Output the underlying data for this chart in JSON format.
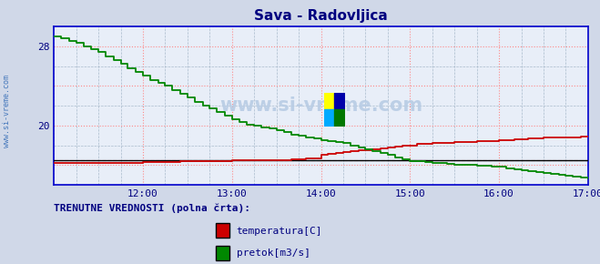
{
  "title": "Sava - Radovljica",
  "title_color": "#000080",
  "bg_color": "#d0d8e8",
  "plot_bg_color": "#e8eef8",
  "grid_color_major": "#ff8888",
  "grid_color_minor": "#aabbcc",
  "border_color": "#0000cc",
  "axis_label_color": "#000080",
  "watermark": "www.si-vreme.com",
  "xlim_hours": [
    11.0,
    17.0
  ],
  "xticks": [
    12.0,
    13.0,
    14.0,
    15.0,
    16.0,
    17.0
  ],
  "xtick_labels": [
    "12:00",
    "13:00",
    "14:00",
    "15:00",
    "16:00",
    "17:00"
  ],
  "ylim": [
    14.0,
    30.0
  ],
  "ytick_positions": [
    16,
    20,
    24,
    28
  ],
  "ytick_labels": [
    "",
    "20",
    "",
    "28"
  ],
  "legend_label": "TRENUTNE VREDNOSTI (polna črta):",
  "temp_color": "#cc0000",
  "flow_color": "#008800",
  "height_color": "#000000",
  "dashed_line_y": 16.5,
  "temp_data_x": [
    11.0,
    11.08,
    11.17,
    11.25,
    11.33,
    11.42,
    11.5,
    11.58,
    11.67,
    11.75,
    11.83,
    11.92,
    12.0,
    12.08,
    12.17,
    12.25,
    12.33,
    12.42,
    12.5,
    12.58,
    12.67,
    12.75,
    12.83,
    12.92,
    13.0,
    13.08,
    13.17,
    13.25,
    13.33,
    13.42,
    13.5,
    13.58,
    13.67,
    13.75,
    13.83,
    13.92,
    14.0,
    14.08,
    14.17,
    14.25,
    14.33,
    14.42,
    14.5,
    14.58,
    14.67,
    14.75,
    14.83,
    14.92,
    15.0,
    15.08,
    15.17,
    15.25,
    15.33,
    15.42,
    15.5,
    15.58,
    15.67,
    15.75,
    15.83,
    15.92,
    16.0,
    16.08,
    16.17,
    16.25,
    16.33,
    16.42,
    16.5,
    16.58,
    16.67,
    16.75,
    16.83,
    16.92,
    17.0
  ],
  "temp_data_y": [
    16.2,
    16.2,
    16.2,
    16.2,
    16.2,
    16.2,
    16.2,
    16.2,
    16.2,
    16.2,
    16.2,
    16.2,
    16.3,
    16.3,
    16.3,
    16.3,
    16.3,
    16.4,
    16.4,
    16.4,
    16.4,
    16.4,
    16.4,
    16.4,
    16.5,
    16.5,
    16.5,
    16.5,
    16.5,
    16.5,
    16.5,
    16.5,
    16.6,
    16.6,
    16.7,
    16.7,
    17.0,
    17.1,
    17.2,
    17.3,
    17.4,
    17.5,
    17.5,
    17.6,
    17.7,
    17.8,
    17.9,
    18.0,
    18.0,
    18.1,
    18.1,
    18.2,
    18.2,
    18.2,
    18.3,
    18.3,
    18.3,
    18.4,
    18.4,
    18.4,
    18.5,
    18.5,
    18.6,
    18.6,
    18.7,
    18.7,
    18.8,
    18.8,
    18.8,
    18.8,
    18.8,
    18.9,
    18.9
  ],
  "flow_data_x": [
    11.0,
    11.08,
    11.17,
    11.25,
    11.33,
    11.42,
    11.5,
    11.58,
    11.67,
    11.75,
    11.83,
    11.92,
    12.0,
    12.08,
    12.17,
    12.25,
    12.33,
    12.42,
    12.5,
    12.58,
    12.67,
    12.75,
    12.83,
    12.92,
    13.0,
    13.08,
    13.17,
    13.25,
    13.33,
    13.42,
    13.5,
    13.58,
    13.67,
    13.75,
    13.83,
    13.92,
    14.0,
    14.08,
    14.17,
    14.25,
    14.33,
    14.42,
    14.5,
    14.58,
    14.67,
    14.75,
    14.83,
    14.92,
    15.0,
    15.08,
    15.17,
    15.25,
    15.33,
    15.42,
    15.5,
    15.58,
    15.67,
    15.75,
    15.83,
    15.92,
    16.0,
    16.08,
    16.17,
    16.25,
    16.33,
    16.42,
    16.5,
    16.58,
    16.67,
    16.75,
    16.83,
    16.92,
    17.0
  ],
  "flow_data_y": [
    29.0,
    28.8,
    28.5,
    28.3,
    28.0,
    27.7,
    27.4,
    27.0,
    26.6,
    26.2,
    25.8,
    25.4,
    25.0,
    24.6,
    24.3,
    24.0,
    23.6,
    23.2,
    22.8,
    22.4,
    22.0,
    21.7,
    21.4,
    21.0,
    20.6,
    20.3,
    20.1,
    20.0,
    19.8,
    19.7,
    19.5,
    19.3,
    19.1,
    19.0,
    18.8,
    18.7,
    18.5,
    18.4,
    18.3,
    18.2,
    18.0,
    17.8,
    17.6,
    17.4,
    17.2,
    17.0,
    16.8,
    16.6,
    16.4,
    16.4,
    16.3,
    16.2,
    16.2,
    16.1,
    16.0,
    16.0,
    16.0,
    15.9,
    15.9,
    15.8,
    15.8,
    15.7,
    15.6,
    15.5,
    15.4,
    15.3,
    15.2,
    15.1,
    15.0,
    14.9,
    14.8,
    14.7,
    14.6
  ],
  "height_data_x": [
    11.0,
    17.0
  ],
  "height_data_y": [
    16.5,
    16.5
  ],
  "sidebar_text": "www.si-vreme.com"
}
